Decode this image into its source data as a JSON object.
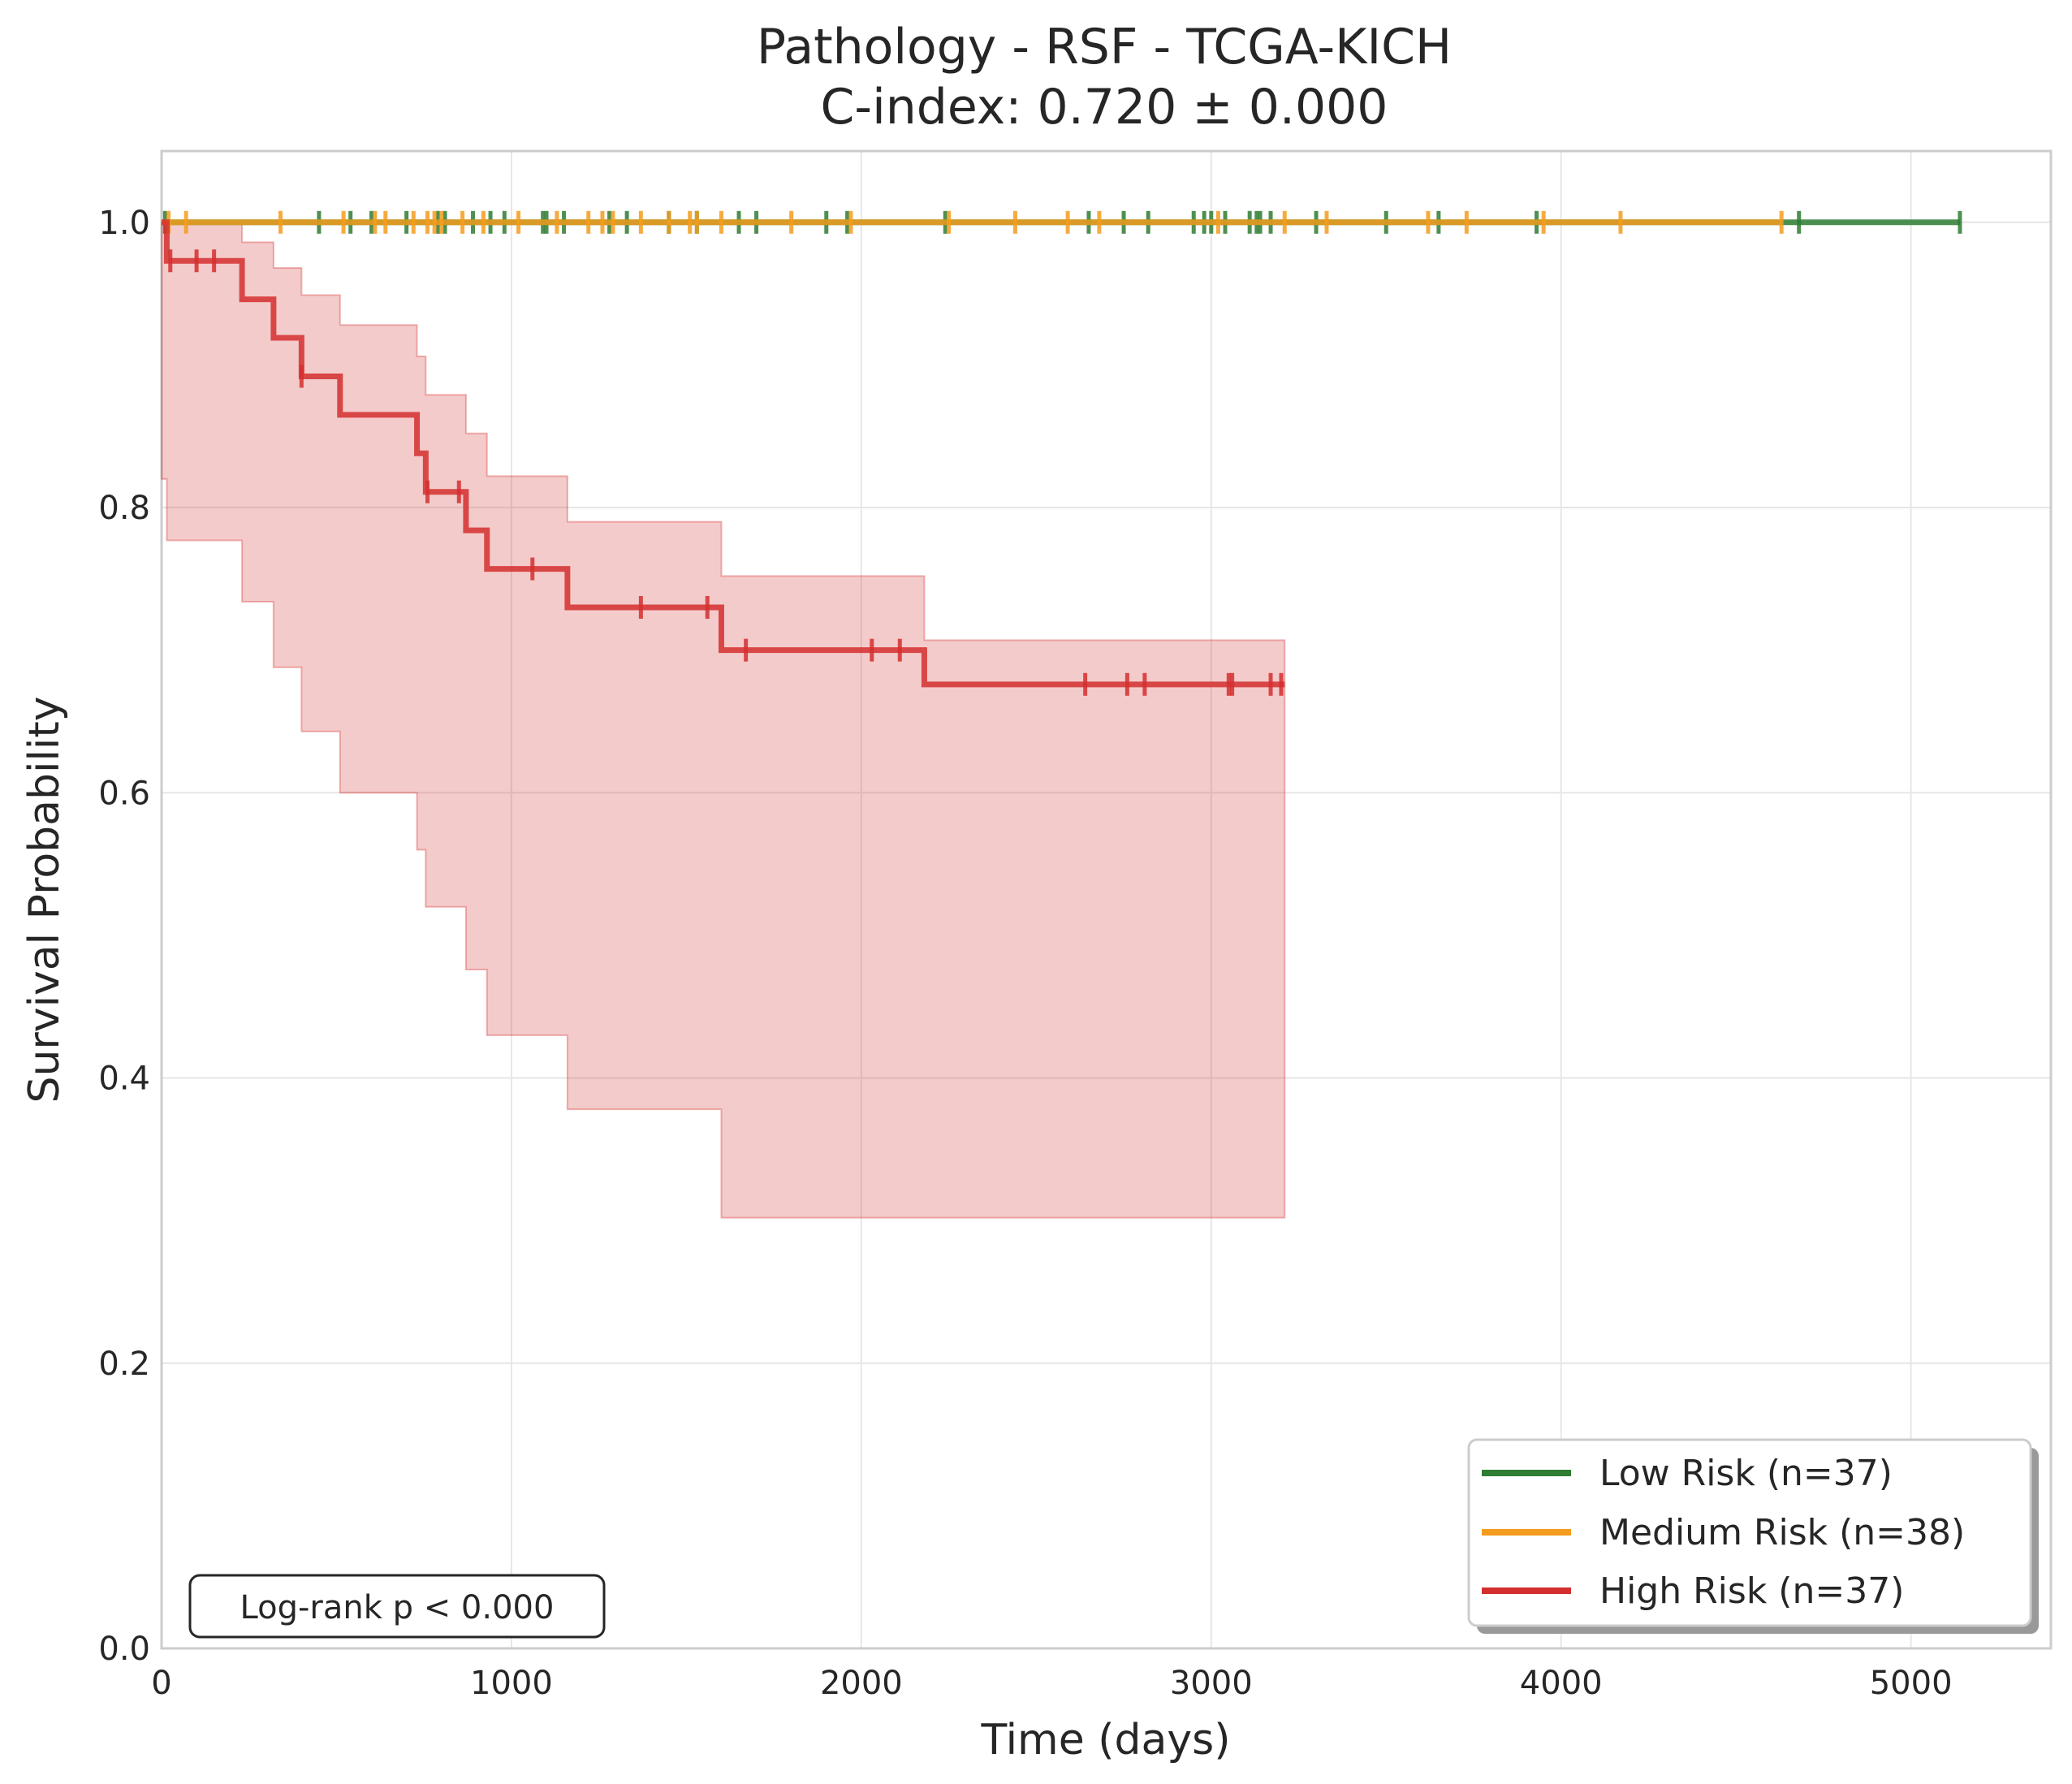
{
  "chart_data": {
    "type": "line",
    "title_line1": "Pathology - RSF - TCGA-KICH",
    "title_line2": "C-index: 0.720 ± 0.000",
    "xlabel": "Time (days)",
    "ylabel": "Survival Probability",
    "xlim": [
      0,
      5400
    ],
    "ylim": [
      0,
      1.05
    ],
    "x_ticks": [
      0,
      1000,
      2000,
      3000,
      4000,
      5000
    ],
    "x_tick_labels": [
      "0",
      "1000",
      "2000",
      "3000",
      "4000",
      "5000"
    ],
    "y_ticks": [
      0.0,
      0.2,
      0.4,
      0.6,
      0.8,
      1.0
    ],
    "y_tick_labels": [
      "0.0",
      "0.2",
      "0.4",
      "0.6",
      "0.8",
      "1.0"
    ],
    "grid": true,
    "legend_position": "lower-right",
    "annotation": "Log-rank p < 0.000",
    "series": [
      {
        "name": "Low Risk (n=37)",
        "color": "#2e7d32",
        "steps": [
          [
            0,
            1.0
          ],
          [
            5140,
            1.0
          ]
        ],
        "censored": [
          10,
          450,
          540,
          600,
          700,
          790,
          810,
          890,
          940,
          980,
          1090,
          1100,
          1150,
          1280,
          1330,
          1450,
          1530,
          1650,
          1700,
          1900,
          1960,
          2240,
          2650,
          2750,
          2820,
          2950,
          2980,
          3000,
          3040,
          3110,
          3130,
          3140,
          3170,
          3300,
          3500,
          3650,
          3930,
          4680,
          5140
        ],
        "ci": null
      },
      {
        "name": "Medium Risk (n=38)",
        "color": "#f39c1e",
        "steps": [
          [
            0,
            1.0
          ],
          [
            4630,
            1.0
          ]
        ],
        "censored": [
          20,
          70,
          340,
          520,
          610,
          640,
          720,
          760,
          780,
          800,
          860,
          920,
          1020,
          1130,
          1220,
          1260,
          1290,
          1370,
          1450,
          1510,
          1530,
          1600,
          1800,
          1970,
          2250,
          2440,
          2590,
          2680,
          3020,
          3210,
          3330,
          3620,
          3730,
          3950,
          4170,
          4630
        ],
        "ci": null
      },
      {
        "name": "High Risk (n=37)",
        "color": "#d32f2f",
        "steps": [
          [
            0,
            1.0
          ],
          [
            15,
            0.973
          ],
          [
            230,
            0.946
          ],
          [
            320,
            0.919
          ],
          [
            400,
            0.892
          ],
          [
            510,
            0.865
          ],
          [
            730,
            0.838
          ],
          [
            755,
            0.811
          ],
          [
            870,
            0.784
          ],
          [
            930,
            0.757
          ],
          [
            1160,
            0.73
          ],
          [
            1600,
            0.7
          ],
          [
            2180,
            0.676
          ],
          [
            3210,
            0.676
          ]
        ],
        "censored": [
          25,
          100,
          150,
          400,
          760,
          850,
          1060,
          1370,
          1560,
          1670,
          2030,
          2110,
          2640,
          2760,
          2810,
          3050,
          3060,
          3170,
          3200
        ],
        "ci": {
          "x": [
            0,
            15,
            230,
            320,
            400,
            510,
            730,
            755,
            870,
            930,
            1160,
            1600,
            2180,
            3210
          ],
          "upper": [
            1.0,
            1.0,
            0.986,
            0.968,
            0.949,
            0.928,
            0.906,
            0.879,
            0.852,
            0.822,
            0.79,
            0.752,
            0.707,
            0.707
          ],
          "lower": [
            0.82,
            0.82,
            0.777,
            0.734,
            0.688,
            0.643,
            0.6,
            0.56,
            0.52,
            0.476,
            0.43,
            0.378,
            0.302,
            0.302
          ]
        }
      }
    ]
  }
}
